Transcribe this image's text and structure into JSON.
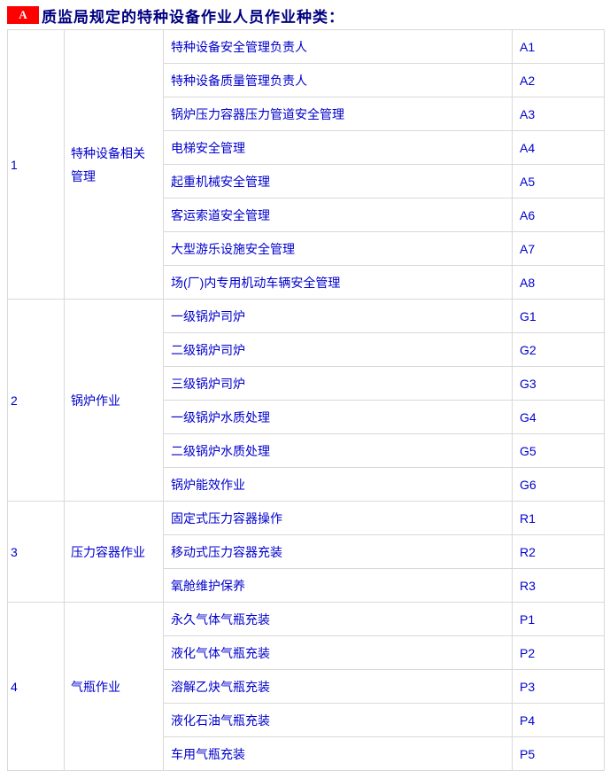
{
  "header": {
    "badge": "A",
    "title": "质监局规定的特种设备作业人员作业种类："
  },
  "colors": {
    "title_text": "#000080",
    "badge_background": "#ff0000",
    "badge_text": "#ffffff",
    "cell_text": "#0000cc",
    "table_border": "#d9d9d9"
  },
  "table": {
    "groups": [
      {
        "no": "1",
        "category": "特种设备相关管理",
        "items": [
          {
            "name": "特种设备安全管理负责人",
            "code": "A1"
          },
          {
            "name": "特种设备质量管理负责人",
            "code": "A2"
          },
          {
            "name": "锅炉压力容器压力管道安全管理",
            "code": "A3"
          },
          {
            "name": "电梯安全管理",
            "code": "A4"
          },
          {
            "name": "起重机械安全管理",
            "code": "A5"
          },
          {
            "name": "客运索道安全管理",
            "code": "A6"
          },
          {
            "name": "大型游乐设施安全管理",
            "code": "A7"
          },
          {
            "name": "场(厂)内专用机动车辆安全管理",
            "code": "A8"
          }
        ]
      },
      {
        "no": "2",
        "category": "锅炉作业",
        "items": [
          {
            "name": "一级锅炉司炉",
            "code": "G1"
          },
          {
            "name": "二级锅炉司炉",
            "code": "G2"
          },
          {
            "name": "三级锅炉司炉",
            "code": "G3"
          },
          {
            "name": "一级锅炉水质处理",
            "code": "G4"
          },
          {
            "name": "二级锅炉水质处理",
            "code": "G5"
          },
          {
            "name": "锅炉能效作业",
            "code": "G6"
          }
        ]
      },
      {
        "no": "3",
        "category": "压力容器作业",
        "items": [
          {
            "name": "固定式压力容器操作",
            "code": "R1"
          },
          {
            "name": "移动式压力容器充装",
            "code": "R2"
          },
          {
            "name": "氧舱维护保养",
            "code": "R3"
          }
        ]
      },
      {
        "no": "4",
        "category": "气瓶作业",
        "items": [
          {
            "name": "永久气体气瓶充装",
            "code": "P1"
          },
          {
            "name": "液化气体气瓶充装",
            "code": "P2"
          },
          {
            "name": "溶解乙炔气瓶充装",
            "code": "P3"
          },
          {
            "name": "液化石油气瓶充装",
            "code": "P4"
          },
          {
            "name": "车用气瓶充装",
            "code": "P5"
          }
        ]
      }
    ]
  }
}
